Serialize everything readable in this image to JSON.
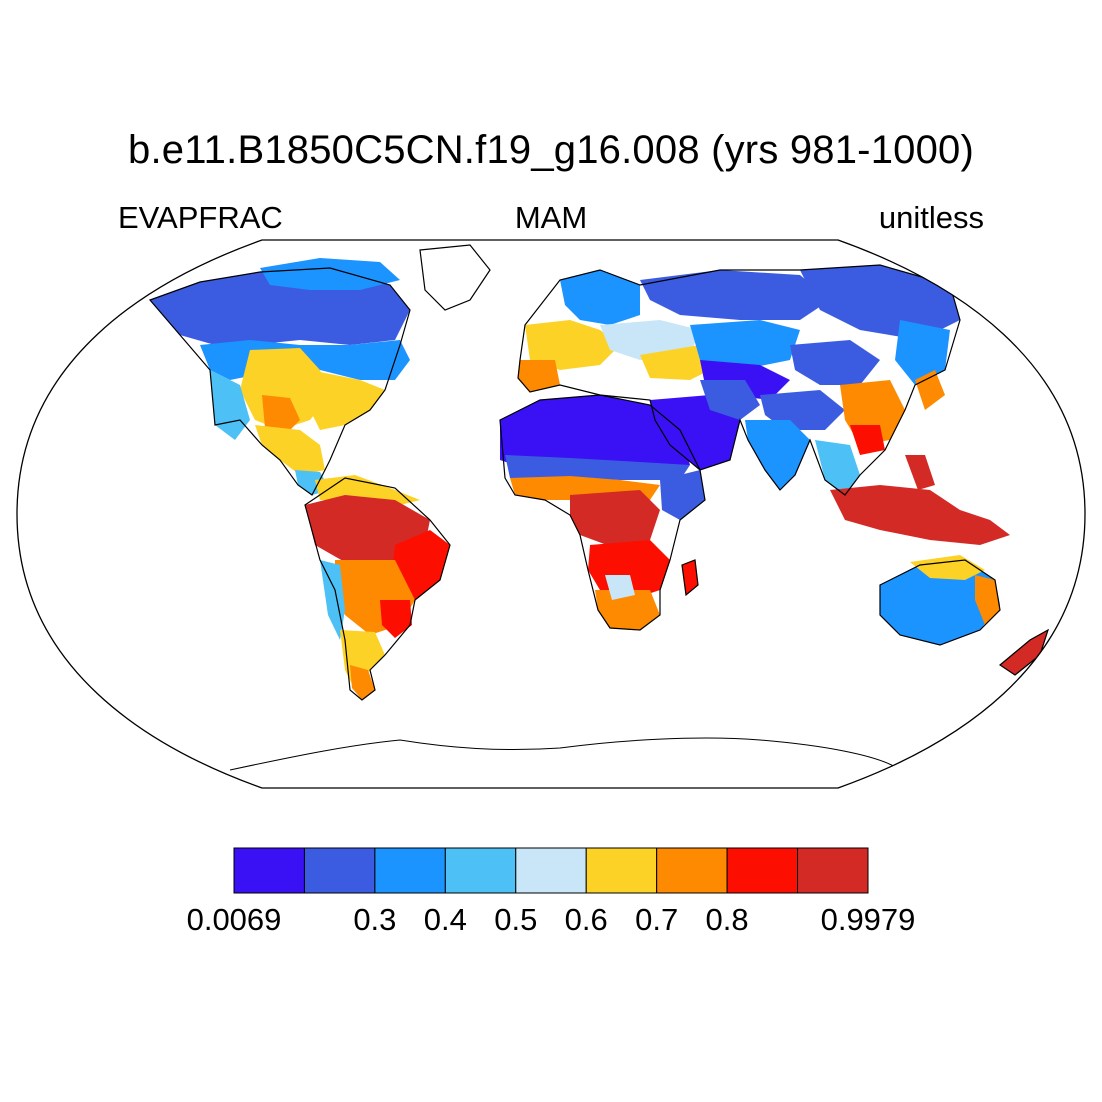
{
  "header": {
    "title": "b.e11.B1850C5CN.f19_g16.008 (yrs 981-1000)",
    "variable": "EVAPFRAC",
    "season": "MAM",
    "units": "unitless"
  },
  "map": {
    "projection": "Robinson",
    "coastlines": true,
    "ocean_color": "#ffffff"
  },
  "colorbar": {
    "colors": [
      "#3a10f5",
      "#3b5ce0",
      "#1c94ff",
      "#4dc0f5",
      "#c8e6f8",
      "#fdd226",
      "#fd8a00",
      "#fc0f00",
      "#d42a26"
    ],
    "tick_labels": [
      {
        "text": "0.0069",
        "boundary": 0
      },
      {
        "text": "0.3",
        "boundary": 2
      },
      {
        "text": "0.4",
        "boundary": 3
      },
      {
        "text": "0.5",
        "boundary": 4
      },
      {
        "text": "0.6",
        "boundary": 5
      },
      {
        "text": "0.7",
        "boundary": 6
      },
      {
        "text": "0.8",
        "boundary": 7
      },
      {
        "text": "0.9979",
        "boundary": 9
      }
    ]
  }
}
